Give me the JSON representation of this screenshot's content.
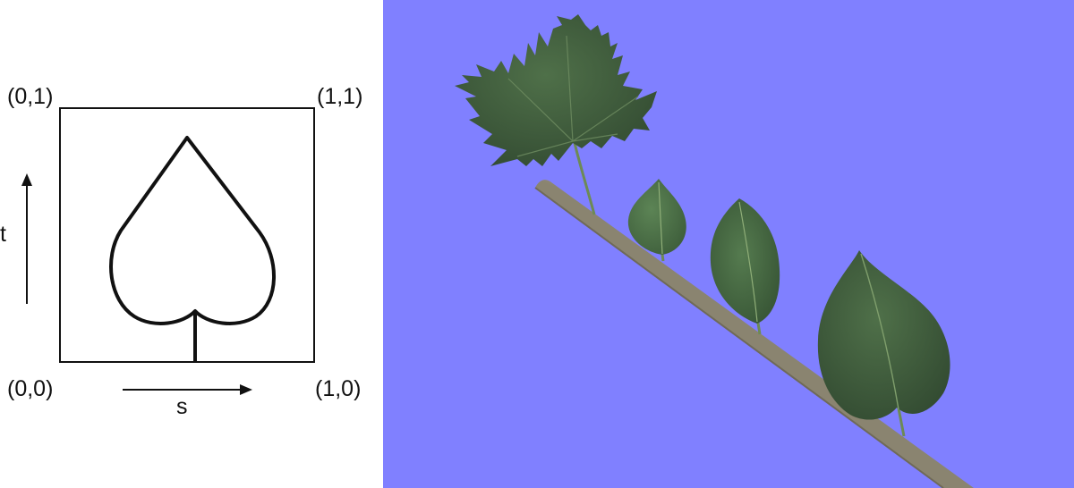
{
  "texture_diagram": {
    "corners": {
      "top_left": "(0,1)",
      "top_right": "(1,1)",
      "bottom_left": "(0,0)",
      "bottom_right": "(1,0)"
    },
    "axes": {
      "s": "s",
      "t": "t"
    }
  },
  "render_scene": {
    "background_color": "#8080ff",
    "branch_color": "#cfc6a8",
    "leaf_colors": [
      "#3f5e3e",
      "#4c6f48",
      "#476b44",
      "#405e3d"
    ],
    "leaves": [
      {
        "name": "maple-leaf"
      },
      {
        "name": "small-birch-leaf"
      },
      {
        "name": "oval-leaf"
      },
      {
        "name": "heart-shaped-lilac-leaf"
      }
    ]
  }
}
